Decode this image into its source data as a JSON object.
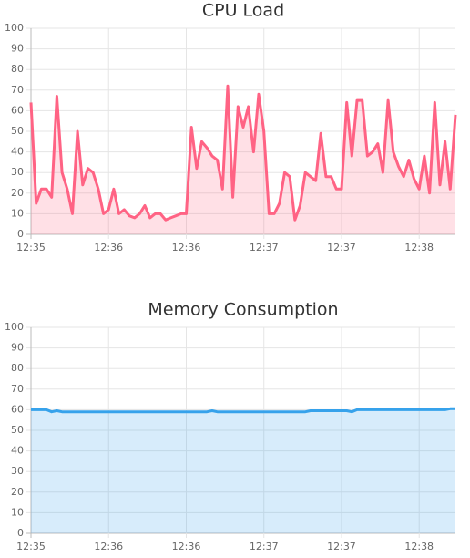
{
  "chart_data": [
    {
      "type": "line",
      "title": "CPU Load",
      "categories": [
        "12:35",
        null,
        null,
        null,
        null,
        null,
        null,
        null,
        null,
        null,
        null,
        null,
        null,
        null,
        null,
        "12:36",
        null,
        null,
        null,
        null,
        null,
        null,
        null,
        null,
        null,
        null,
        null,
        null,
        null,
        null,
        "12:36",
        null,
        null,
        null,
        null,
        null,
        null,
        null,
        null,
        null,
        null,
        null,
        null,
        null,
        null,
        "12:37",
        null,
        null,
        null,
        null,
        null,
        null,
        null,
        null,
        null,
        null,
        null,
        null,
        null,
        null,
        "12:37",
        null,
        null,
        null,
        null,
        null,
        null,
        null,
        null,
        null,
        null,
        null,
        null,
        null,
        null,
        "12:38",
        null,
        null,
        null,
        null,
        null,
        null,
        null
      ],
      "values": [
        64,
        15,
        22,
        22,
        18,
        67,
        30,
        22,
        10,
        50,
        24,
        32,
        30,
        22,
        10,
        12,
        22,
        10,
        12,
        9,
        8,
        10,
        14,
        8,
        10,
        10,
        7,
        8,
        9,
        10,
        10,
        52,
        32,
        45,
        42,
        38,
        36,
        22,
        72,
        18,
        62,
        52,
        62,
        40,
        68,
        50,
        10,
        10,
        15,
        30,
        28,
        7,
        14,
        30,
        28,
        26,
        49,
        28,
        28,
        22,
        22,
        64,
        38,
        65,
        65,
        38,
        40,
        44,
        30,
        65,
        40,
        33,
        28,
        36,
        27,
        22,
        38,
        20,
        64,
        24,
        45,
        22,
        58
      ],
      "color": "#ff6384",
      "fill": "rgba(255,99,132,0.2)",
      "ylim": [
        0,
        100
      ],
      "yticks": [
        0,
        10,
        20,
        30,
        40,
        50,
        60,
        70,
        80,
        90,
        100
      ],
      "grid": true
    },
    {
      "type": "line",
      "title": "Memory Consumption",
      "categories": [
        "12:35",
        null,
        null,
        null,
        null,
        null,
        null,
        null,
        null,
        null,
        null,
        null,
        null,
        null,
        null,
        "12:36",
        null,
        null,
        null,
        null,
        null,
        null,
        null,
        null,
        null,
        null,
        null,
        null,
        null,
        null,
        "12:36",
        null,
        null,
        null,
        null,
        null,
        null,
        null,
        null,
        null,
        null,
        null,
        null,
        null,
        null,
        "12:37",
        null,
        null,
        null,
        null,
        null,
        null,
        null,
        null,
        null,
        null,
        null,
        null,
        null,
        null,
        "12:37",
        null,
        null,
        null,
        null,
        null,
        null,
        null,
        null,
        null,
        null,
        null,
        null,
        null,
        null,
        "12:38",
        null,
        null,
        null,
        null,
        null,
        null,
        null
      ],
      "values": [
        60,
        60,
        60,
        60,
        59,
        59.5,
        59,
        59,
        59,
        59,
        59,
        59,
        59,
        59,
        59,
        59,
        59,
        59,
        59,
        59,
        59,
        59,
        59,
        59,
        59,
        59,
        59,
        59,
        59,
        59,
        59,
        59,
        59,
        59,
        59,
        59.5,
        59,
        59,
        59,
        59,
        59,
        59,
        59,
        59,
        59,
        59,
        59,
        59,
        59,
        59,
        59,
        59,
        59,
        59,
        59.5,
        59.5,
        59.5,
        59.5,
        59.5,
        59.5,
        59.5,
        59.5,
        59,
        60,
        60,
        60,
        60,
        60,
        60,
        60,
        60,
        60,
        60,
        60,
        60,
        60,
        60,
        60,
        60,
        60,
        60,
        60.5,
        60.5
      ],
      "color": "#36a2eb",
      "fill": "rgba(54,162,235,0.2)",
      "ylim": [
        0,
        100
      ],
      "yticks": [
        0,
        10,
        20,
        30,
        40,
        50,
        60,
        70,
        80,
        90,
        100
      ],
      "grid": true
    }
  ]
}
